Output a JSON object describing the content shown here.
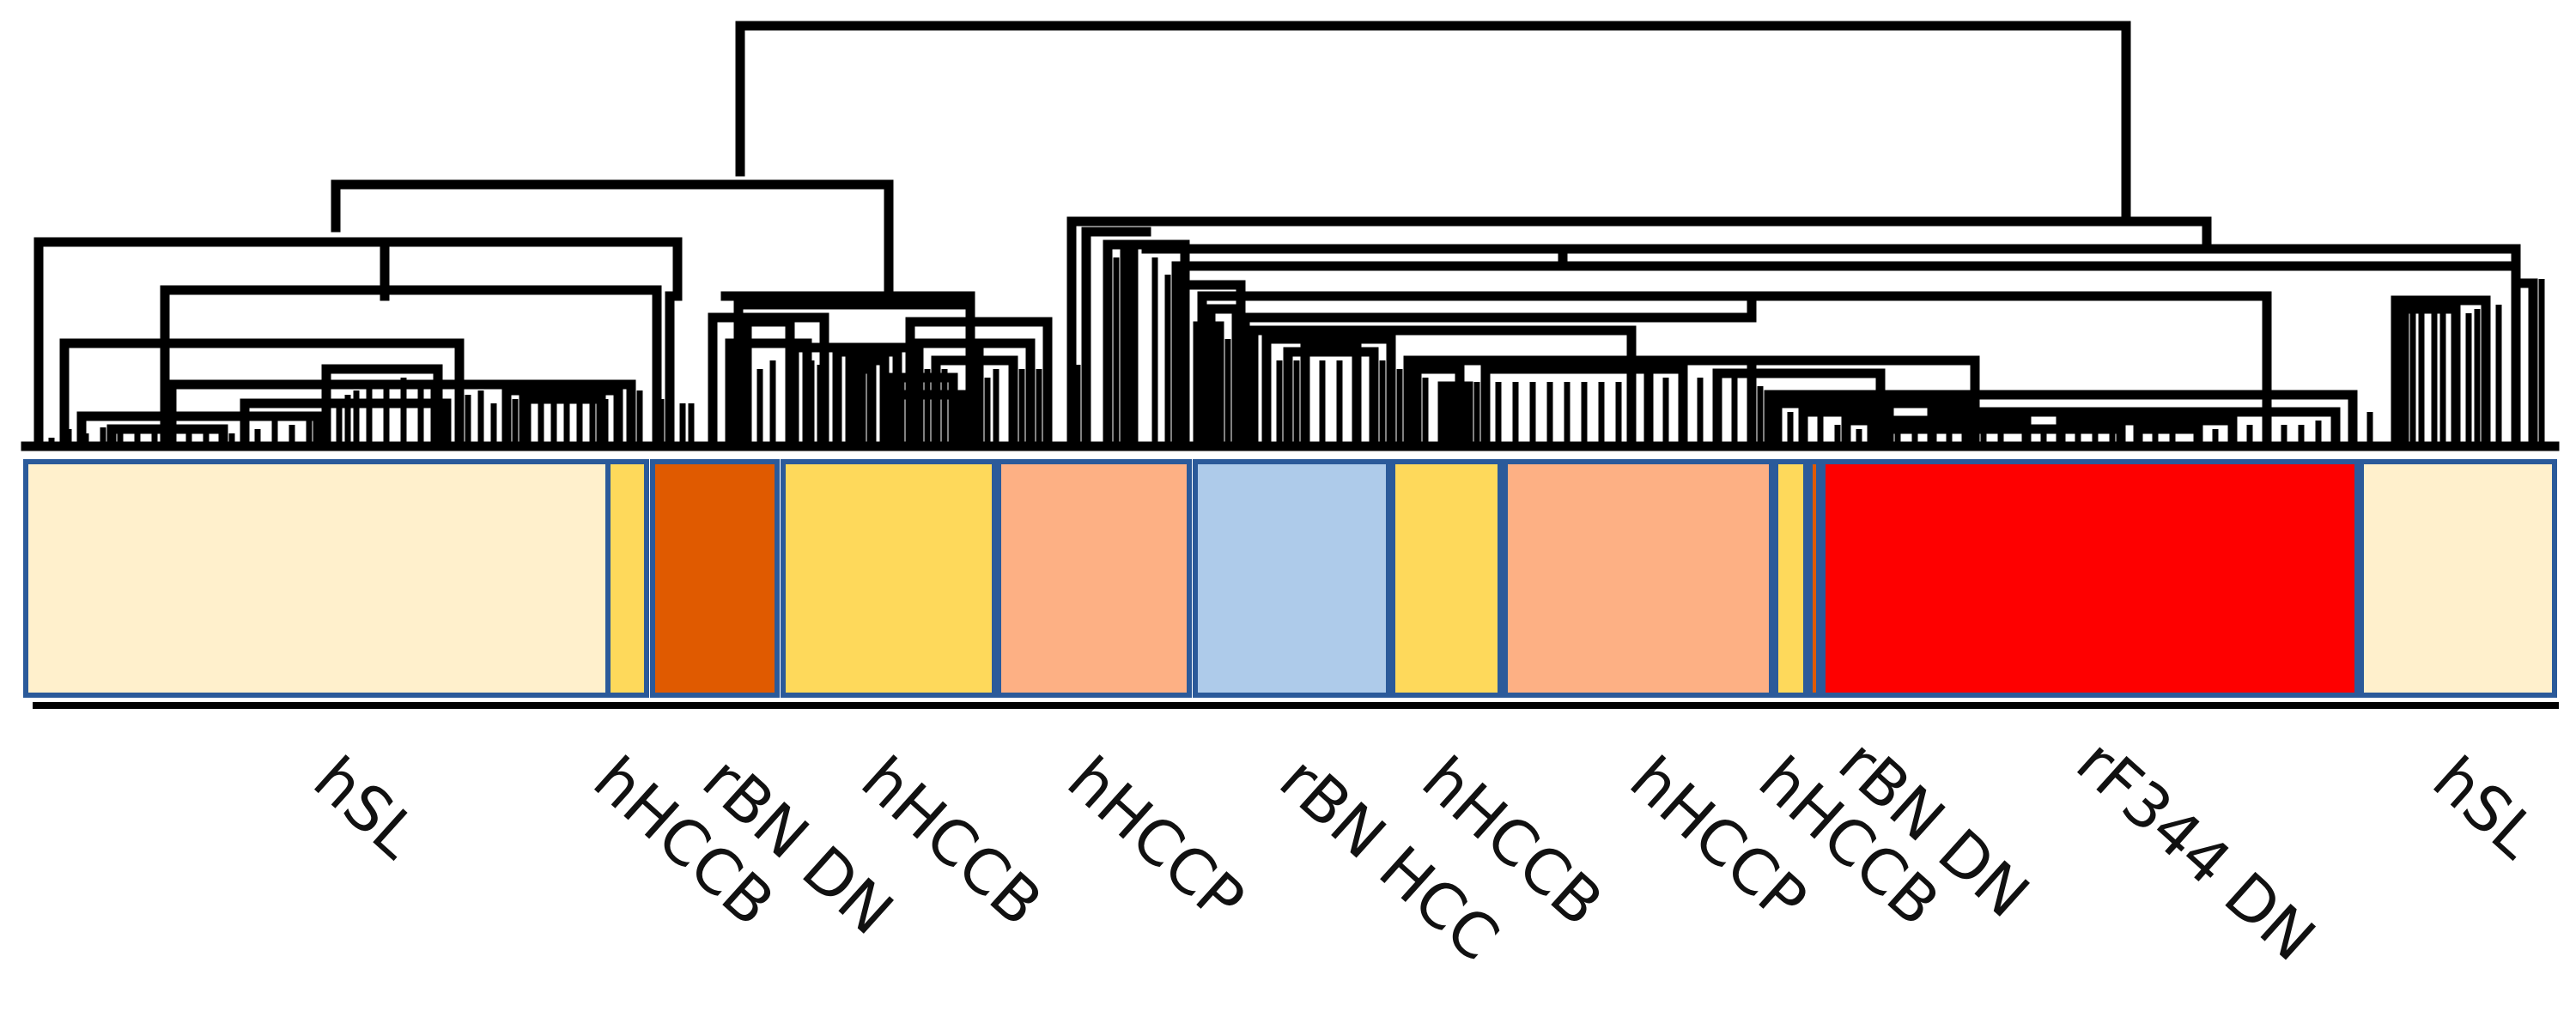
{
  "figure": {
    "type": "dendrogram-heatmap",
    "description_labels": true
  },
  "colors": {
    "hSL": "#fff0cc",
    "hHCCB": "#fed95b",
    "rBN DN": "#e05a00",
    "hHCCP": "#fdb084",
    "rBN HCC": "#aecbea",
    "rF344 DN": "#fe0000",
    "divider": "#2b5a9a",
    "line": "#000000"
  },
  "groups": [
    {
      "label": "hSL",
      "color_key": "hSL"
    },
    {
      "label": "hHCCB",
      "color_key": "hHCCB"
    },
    {
      "label": "rBN DN",
      "color_key": "rBN DN"
    },
    {
      "label": "hHCCB",
      "color_key": "hHCCB"
    },
    {
      "label": "hHCCP",
      "color_key": "hHCCP"
    },
    {
      "label": "rBN HCC",
      "color_key": "rBN HCC"
    },
    {
      "label": "hHCCB",
      "color_key": "hHCCB"
    },
    {
      "label": "hHCCP",
      "color_key": "hHCCP"
    },
    {
      "label": "hHCCB",
      "color_key": "hHCCB"
    },
    {
      "label": "rBN DN",
      "color_key": "rBN DN"
    },
    {
      "label": "rF344 DN",
      "color_key": "rF344 DN"
    },
    {
      "label": "hSL",
      "color_key": "hSL"
    }
  ]
}
